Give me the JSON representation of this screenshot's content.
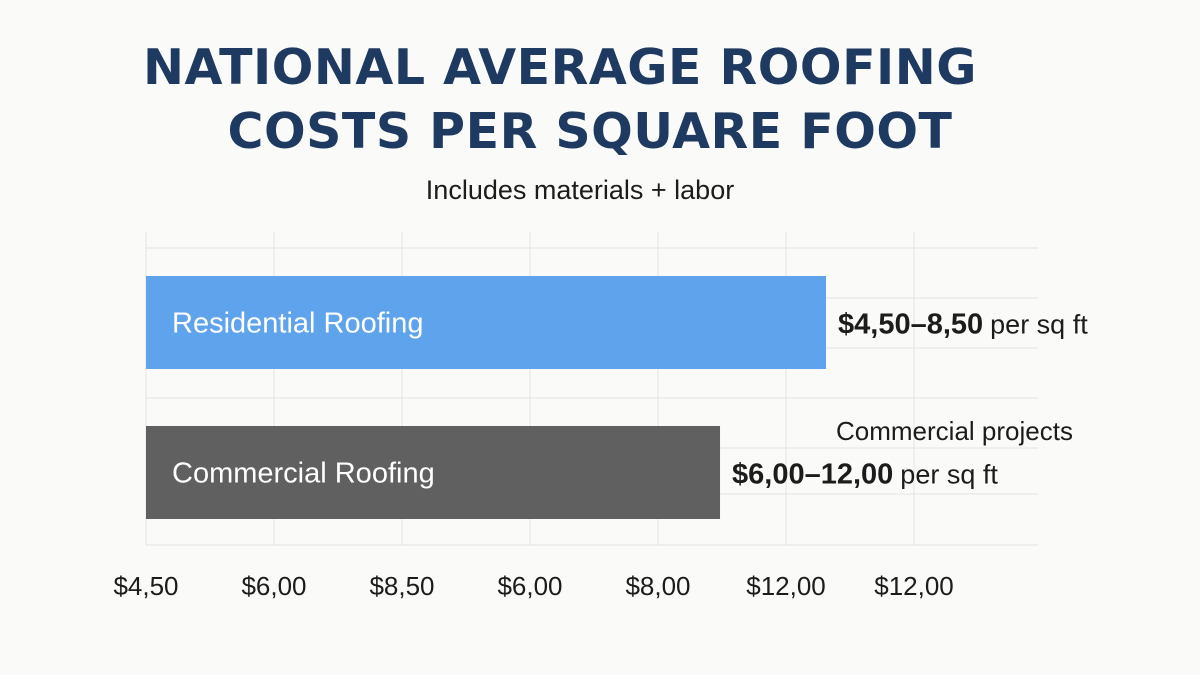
{
  "header": {
    "title_line1": "NATIONAL AVERAGE ROOFING",
    "title_line2": "COSTS PER SQUARE FOOT",
    "subtitle": "Includes materials + labor"
  },
  "colors": {
    "residential": "#5ea3ec",
    "commercial": "#606060",
    "title": "#1f3a60",
    "grid": "#e4e4e4"
  },
  "chart_data": {
    "type": "bar",
    "orientation": "horizontal",
    "title": "NATIONAL AVERAGE ROOFING COSTS PER SQUARE FOOT",
    "subtitle": "Includes materials + labor",
    "grid": true,
    "x_tick_labels": [
      "$4,50",
      "$6,00",
      "$8,50",
      "$6,00",
      "$8,00",
      "$12,00",
      "$12,00"
    ],
    "bars": [
      {
        "category": "Residential Roofing",
        "range_low": 4.5,
        "range_high": 8.5,
        "value_label": "$4,50–8,50",
        "unit_label": "per sq ft",
        "color": "#5ea3ec"
      },
      {
        "category": "Commercial Roofing",
        "range_low": 6.0,
        "range_high": 12.0,
        "value_label": "$6,00–12,00",
        "unit_label": "per sq ft",
        "annotation": "Commercial projects",
        "color": "#606060"
      }
    ]
  }
}
